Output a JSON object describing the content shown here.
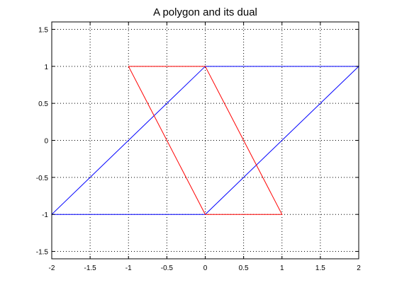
{
  "chart_data": {
    "type": "line",
    "title": "A polygon and its dual",
    "xlabel": "",
    "ylabel": "",
    "xlim": [
      -2,
      2
    ],
    "ylim": [
      -1.6,
      1.6
    ],
    "xticks": [
      -2,
      -1.5,
      -1,
      -0.5,
      0,
      0.5,
      1,
      1.5,
      2
    ],
    "xtick_labels": [
      "-2",
      "-1.5",
      "-1",
      "-0.5",
      "0",
      "0.5",
      "1",
      "1.5",
      "2"
    ],
    "yticks": [
      1.5,
      1,
      0.5,
      0,
      -0.5,
      -1,
      -1.5
    ],
    "ytick_labels": [
      "1.5",
      "1",
      "0.5",
      "0",
      "-0.5",
      "-1",
      "-1.5"
    ],
    "grid": true,
    "series": [
      {
        "color": "#0000ff",
        "x": [
          -2,
          0,
          2,
          0,
          -2
        ],
        "y": [
          -1,
          1,
          1,
          -1,
          -1
        ]
      },
      {
        "color": "#ff0000",
        "x": [
          -1,
          0,
          1,
          0,
          -1
        ],
        "y": [
          1,
          1,
          -1,
          -1,
          1
        ]
      }
    ]
  }
}
